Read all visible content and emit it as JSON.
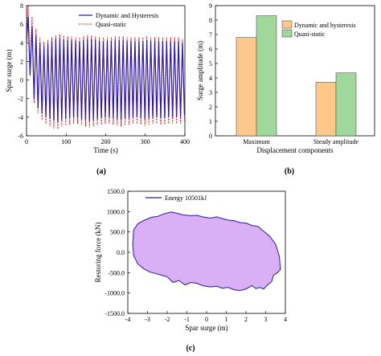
{
  "chart_data": [
    {
      "panel_label": "(a)",
      "type": "line",
      "xlabel": "Time (s)",
      "ylabel": "Spar surge (m)",
      "xlim": [
        0,
        400
      ],
      "ylim": [
        -6,
        8
      ],
      "xticks": [
        0,
        100,
        200,
        300,
        400
      ],
      "yticks": [
        -6,
        -4,
        -2,
        0,
        2,
        4,
        6,
        8
      ],
      "legend_position": "top-right",
      "series": [
        {
          "name": "Dynamic and Hysteresis",
          "color": "#2b1aa8",
          "style": "solid",
          "x": [
            0,
            4,
            9,
            14,
            19,
            24,
            29,
            34,
            39,
            44,
            49,
            54,
            59,
            64,
            69,
            74,
            79,
            84,
            89,
            94,
            99,
            104,
            109,
            114,
            119,
            124,
            129,
            134,
            139,
            144,
            149,
            154,
            159,
            164,
            169,
            174,
            179,
            184,
            189,
            194,
            199,
            204,
            209,
            214,
            219,
            224,
            229,
            234,
            239,
            244,
            249,
            254,
            259,
            264,
            269,
            274,
            279,
            284,
            289,
            294,
            299,
            304,
            309,
            314,
            319,
            324,
            329,
            334,
            339,
            344,
            349,
            354,
            359,
            364,
            369,
            374,
            379,
            384,
            389,
            394,
            399
          ],
          "y": [
            4.0,
            6.8,
            0.5,
            5.8,
            -2.0,
            4.8,
            -3.0,
            4.0,
            -3.6,
            3.6,
            -3.9,
            3.9,
            -4.2,
            4.2,
            -4.4,
            4.4,
            -4.5,
            4.5,
            -4.3,
            4.4,
            -4.2,
            4.3,
            -4.1,
            4.3,
            -4.0,
            4.2,
            -4.0,
            4.2,
            -4.2,
            4.3,
            -4.3,
            4.4,
            -4.4,
            4.4,
            -4.3,
            4.3,
            -4.2,
            4.2,
            -4.1,
            4.2,
            -4.0,
            4.2,
            -4.0,
            4.2,
            -4.1,
            4.3,
            -4.2,
            4.3,
            -4.3,
            4.3,
            -4.2,
            4.2,
            -4.1,
            4.2,
            -4.0,
            4.2,
            -4.0,
            4.2,
            -4.1,
            4.2,
            -4.2,
            4.3,
            -4.1,
            4.2,
            -4.0,
            4.2,
            -4.0,
            4.2,
            -4.1,
            4.2,
            -4.1,
            4.2,
            -4.0,
            4.2,
            -4.0,
            4.2,
            -4.0,
            4.2,
            -4.0,
            4.0,
            -3.8
          ]
        },
        {
          "name": "Quasi-static",
          "color": "#e8161b",
          "style": "dashed",
          "x": [
            0,
            4,
            9,
            14,
            19,
            24,
            29,
            34,
            39,
            44,
            49,
            54,
            59,
            64,
            69,
            74,
            79,
            84,
            89,
            94,
            99,
            104,
            109,
            114,
            119,
            124,
            129,
            134,
            139,
            144,
            149,
            154,
            159,
            164,
            169,
            174,
            179,
            184,
            189,
            194,
            199,
            204,
            209,
            214,
            219,
            224,
            229,
            234,
            239,
            244,
            249,
            254,
            259,
            264,
            269,
            274,
            279,
            284,
            289,
            294,
            299,
            304,
            309,
            314,
            319,
            324,
            329,
            334,
            339,
            344,
            349,
            354,
            359,
            364,
            369,
            374,
            379,
            384,
            389,
            394,
            399
          ],
          "y": [
            4.5,
            8.0,
            1.0,
            6.8,
            -2.5,
            5.5,
            -3.6,
            4.6,
            -4.3,
            4.1,
            -4.7,
            4.3,
            -5.0,
            4.6,
            -5.2,
            4.8,
            -5.3,
            4.9,
            -5.0,
            4.8,
            -4.9,
            4.7,
            -4.8,
            4.7,
            -4.7,
            4.6,
            -4.7,
            4.6,
            -4.9,
            4.7,
            -5.0,
            4.8,
            -5.1,
            4.8,
            -5.0,
            4.7,
            -4.9,
            4.6,
            -4.8,
            4.6,
            -4.7,
            4.6,
            -4.7,
            4.6,
            -4.8,
            4.7,
            -4.9,
            4.7,
            -5.0,
            4.7,
            -4.9,
            4.6,
            -4.8,
            4.6,
            -4.7,
            4.6,
            -4.7,
            4.6,
            -4.8,
            4.6,
            -4.9,
            4.7,
            -4.8,
            4.6,
            -4.7,
            4.6,
            -4.7,
            4.6,
            -4.8,
            4.6,
            -4.8,
            4.6,
            -4.7,
            4.6,
            -4.7,
            4.6,
            -4.7,
            4.6,
            -4.7,
            4.4,
            -4.5
          ]
        }
      ]
    },
    {
      "panel_label": "(b)",
      "type": "bar",
      "xlabel": "Displacement components",
      "ylabel": "Surge amplitude (m)",
      "ylim": [
        0,
        9
      ],
      "yticks": [
        0,
        1,
        2,
        3,
        4,
        5,
        6,
        7,
        8,
        9
      ],
      "categories": [
        "Maximum",
        "Steady amplitude"
      ],
      "legend_position": "top-right",
      "series": [
        {
          "name": "Dynamic and hysteresis",
          "color": "#fdc88a",
          "values": [
            6.8,
            3.7
          ]
        },
        {
          "name": "Quasi-static",
          "color": "#9fd89a",
          "values": [
            8.3,
            4.35
          ]
        }
      ]
    },
    {
      "panel_label": "(c)",
      "type": "area",
      "xlabel": "Spar surge (m)",
      "ylabel": "Restoring force (kN)",
      "xlim": [
        -4,
        4
      ],
      "ylim": [
        -1500,
        1500
      ],
      "xticks": [
        -4,
        -3,
        -2,
        -1,
        0,
        1,
        2,
        3,
        4
      ],
      "xticklabels": [
        "-4",
        "-3",
        "-2",
        "-1",
        "0",
        "1",
        "2",
        "3",
        "4"
      ],
      "yticks": [
        1500,
        1000,
        500,
        0,
        -500,
        -1000,
        -1500
      ],
      "yticklabels": [
        "1500.0",
        "1000.0",
        "500.0",
        "0.0",
        "-500.0",
        "-1000.0",
        "-1500.0"
      ],
      "legend_position": "top-left",
      "series": [
        {
          "name": "Energy 10501kJ",
          "color": "#2b1aa8",
          "fill": "#d9b0f5",
          "x": [
            -3.7,
            -3.5,
            -3.2,
            -2.8,
            -2.5,
            -2.2,
            -1.8,
            -1.5,
            -1.2,
            -0.8,
            -0.5,
            -0.2,
            0.2,
            0.5,
            0.8,
            1.1,
            1.4,
            1.7,
            2.0,
            2.3,
            2.6,
            2.9,
            3.2,
            3.5,
            3.7,
            3.75,
            3.6,
            3.4,
            3.3,
            3.1,
            2.9,
            2.7,
            2.5,
            2.3,
            2.0,
            1.7,
            1.4,
            1.1,
            0.8,
            0.5,
            0.2,
            -0.2,
            -0.5,
            -0.8,
            -1.1,
            -1.4,
            -1.7,
            -2.0,
            -2.3,
            -2.6,
            -2.9,
            -3.2,
            -3.5,
            -3.7,
            -3.75
          ],
          "y": [
            550,
            700,
            780,
            860,
            880,
            940,
            990,
            960,
            920,
            900,
            910,
            870,
            840,
            870,
            830,
            790,
            780,
            730,
            720,
            660,
            640,
            520,
            400,
            200,
            -100,
            -420,
            -500,
            -560,
            -720,
            -800,
            -900,
            -860,
            -890,
            -820,
            -900,
            -940,
            -920,
            -860,
            -880,
            -830,
            -850,
            -820,
            -760,
            -740,
            -800,
            -690,
            -740,
            -600,
            -560,
            -520,
            -480,
            -400,
            -280,
            -80,
            200
          ]
        }
      ]
    }
  ]
}
